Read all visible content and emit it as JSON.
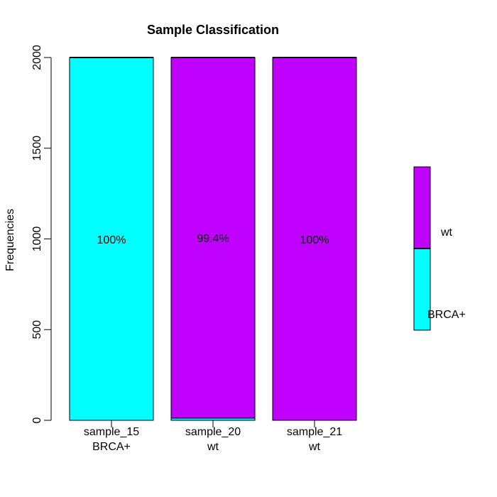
{
  "chart_data": {
    "type": "bar",
    "stacked": true,
    "title": "Sample Classification",
    "xlabel": "",
    "ylabel": "Frequencies",
    "ylim": [
      0,
      2000
    ],
    "yticks": [
      0,
      500,
      1000,
      1500,
      2000
    ],
    "categories": [
      "sample_15",
      "sample_20",
      "sample_21"
    ],
    "category_sublabels": [
      "BRCA+",
      "wt",
      "wt"
    ],
    "series": [
      {
        "name": "BRCA+",
        "color": "#00FFFF",
        "values": [
          2000,
          12,
          0
        ]
      },
      {
        "name": "wt",
        "color": "#C000FF",
        "values": [
          0,
          1988,
          2000
        ]
      }
    ],
    "annotations": [
      "100%",
      "99.4%",
      "100%"
    ],
    "legend": {
      "position": "right",
      "entries": [
        "wt",
        "BRCA+"
      ]
    },
    "grid": false
  }
}
